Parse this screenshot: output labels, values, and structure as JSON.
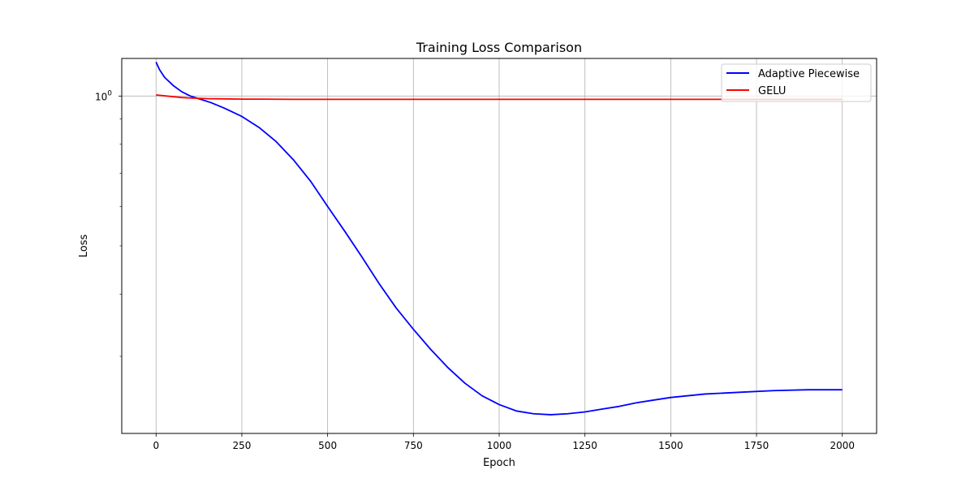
{
  "chart_data": {
    "type": "line",
    "title": "Training Loss Comparison",
    "xlabel": "Epoch",
    "ylabel": "Loss",
    "xlim": [
      -100,
      2100
    ],
    "ylim": [
      0.21,
      1.19
    ],
    "yscale": "log",
    "grid": true,
    "legend_position": "top-right",
    "x_ticks": [
      0,
      250,
      500,
      750,
      1000,
      1250,
      1500,
      1750,
      2000
    ],
    "x_tick_labels": [
      "0",
      "250",
      "500",
      "750",
      "1000",
      "1250",
      "1500",
      "1750",
      "2000"
    ],
    "y_major_ticks": [
      1.0
    ],
    "y_major_tick_base": "10",
    "y_major_tick_exp": "0",
    "y_minor_ticks": [
      0.3,
      0.4,
      0.5,
      0.6,
      0.7,
      0.8,
      0.9
    ],
    "series": [
      {
        "name": "Adaptive Piecewise",
        "color": "#0000ff",
        "x": [
          0,
          10,
          25,
          50,
          75,
          100,
          130,
          160,
          200,
          250,
          300,
          350,
          400,
          450,
          500,
          550,
          600,
          650,
          700,
          750,
          800,
          850,
          900,
          950,
          1000,
          1050,
          1100,
          1150,
          1200,
          1250,
          1300,
          1350,
          1400,
          1450,
          1500,
          1600,
          1700,
          1800,
          1900,
          2000
        ],
        "y": [
          1.17,
          1.13,
          1.09,
          1.05,
          1.02,
          1.0,
          0.985,
          0.97,
          0.945,
          0.91,
          0.865,
          0.81,
          0.745,
          0.675,
          0.6,
          0.535,
          0.475,
          0.42,
          0.375,
          0.34,
          0.31,
          0.285,
          0.265,
          0.25,
          0.24,
          0.233,
          0.23,
          0.229,
          0.23,
          0.232,
          0.235,
          0.238,
          0.242,
          0.245,
          0.248,
          0.252,
          0.254,
          0.256,
          0.257,
          0.257
        ]
      },
      {
        "name": "GELU",
        "color": "#ff0000",
        "x": [
          0,
          25,
          50,
          75,
          100,
          150,
          200,
          250,
          300,
          400,
          500,
          750,
          1000,
          1500,
          2000
        ],
        "y": [
          1.005,
          1.001,
          0.997,
          0.993,
          0.991,
          0.988,
          0.987,
          0.986,
          0.986,
          0.985,
          0.985,
          0.985,
          0.985,
          0.985,
          0.985
        ]
      }
    ]
  }
}
